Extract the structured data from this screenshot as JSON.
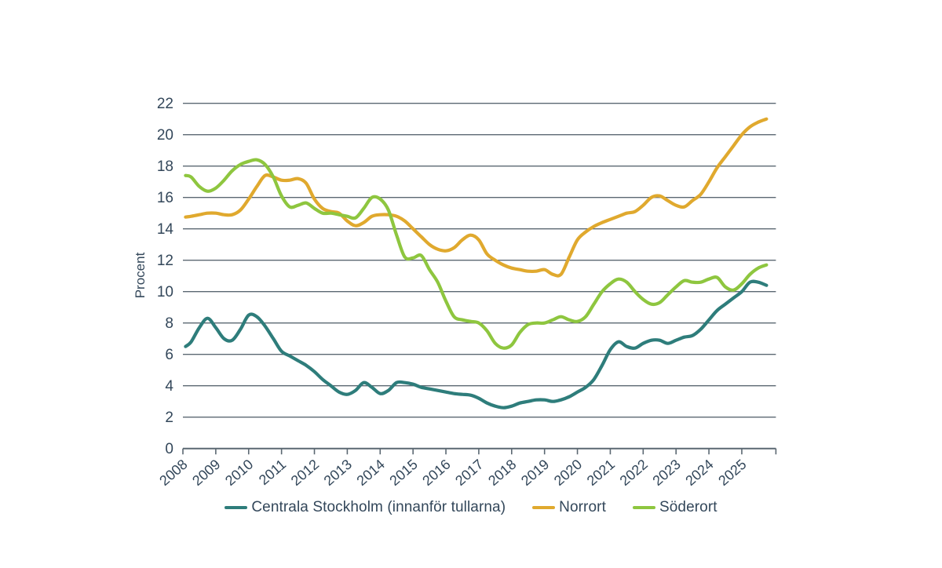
{
  "page": {
    "background_color": "#ffffff"
  },
  "chart_data": {
    "type": "line",
    "title": "",
    "xlabel": "",
    "ylabel": "Procent",
    "ylim": [
      0,
      22
    ],
    "ytick_step": 2,
    "yticks": [
      0,
      2,
      4,
      6,
      8,
      10,
      12,
      14,
      16,
      18,
      20,
      22
    ],
    "xticks": [
      2008,
      2009,
      2010,
      2011,
      2012,
      2013,
      2014,
      2015,
      2016,
      2017,
      2018,
      2019,
      2020,
      2021,
      2022,
      2023,
      2024,
      2025
    ],
    "grid": "horizontal",
    "legend_position": "bottom-center",
    "axis_color": "#5b6872",
    "text_color": "#33475a",
    "x_unit": "year (quarterly samples)",
    "x": [
      2008.08,
      2008.25,
      2008.5,
      2008.75,
      2009,
      2009.25,
      2009.5,
      2009.75,
      2010,
      2010.25,
      2010.5,
      2010.75,
      2011,
      2011.25,
      2011.5,
      2011.75,
      2012,
      2012.25,
      2012.5,
      2012.75,
      2013,
      2013.25,
      2013.5,
      2013.75,
      2014,
      2014.25,
      2014.5,
      2014.75,
      2015,
      2015.25,
      2015.5,
      2015.75,
      2016,
      2016.25,
      2016.5,
      2016.75,
      2017,
      2017.25,
      2017.5,
      2017.75,
      2018,
      2018.25,
      2018.5,
      2018.75,
      2019,
      2019.25,
      2019.5,
      2019.75,
      2020,
      2020.25,
      2020.5,
      2020.75,
      2021,
      2021.25,
      2021.5,
      2021.75,
      2022,
      2022.25,
      2022.5,
      2022.75,
      2023,
      2023.25,
      2023.5,
      2023.75,
      2024,
      2024.25,
      2024.5,
      2024.75,
      2025,
      2025.25,
      2025.5,
      2025.75
    ],
    "series": [
      {
        "name": "Centrala Stockholm (innanför tullarna)",
        "color": "#2e7d7b",
        "values": [
          6.5,
          6.8,
          7.7,
          8.3,
          7.7,
          7.0,
          6.9,
          7.6,
          8.5,
          8.4,
          7.8,
          7.0,
          6.2,
          5.9,
          5.6,
          5.3,
          4.9,
          4.4,
          4.0,
          3.6,
          3.45,
          3.7,
          4.2,
          3.9,
          3.5,
          3.7,
          4.2,
          4.2,
          4.1,
          3.9,
          3.8,
          3.7,
          3.6,
          3.5,
          3.45,
          3.4,
          3.2,
          2.9,
          2.7,
          2.6,
          2.7,
          2.9,
          3.0,
          3.1,
          3.1,
          3.0,
          3.1,
          3.3,
          3.6,
          3.9,
          4.4,
          5.3,
          6.3,
          6.8,
          6.5,
          6.4,
          6.7,
          6.9,
          6.9,
          6.7,
          6.9,
          7.1,
          7.2,
          7.6,
          8.2,
          8.8,
          9.2,
          9.6,
          10.0,
          10.6,
          10.6,
          10.4
        ]
      },
      {
        "name": "Norrort",
        "color": "#e0a92e",
        "values": [
          14.75,
          14.8,
          14.9,
          15.0,
          15.0,
          14.9,
          14.9,
          15.2,
          15.9,
          16.7,
          17.4,
          17.3,
          17.1,
          17.1,
          17.2,
          16.9,
          15.9,
          15.3,
          15.1,
          15.0,
          14.5,
          14.2,
          14.4,
          14.8,
          14.9,
          14.9,
          14.8,
          14.5,
          14.0,
          13.5,
          13.0,
          12.7,
          12.6,
          12.8,
          13.3,
          13.6,
          13.3,
          12.4,
          12.0,
          11.7,
          11.5,
          11.4,
          11.3,
          11.3,
          11.4,
          11.1,
          11.1,
          12.2,
          13.3,
          13.8,
          14.15,
          14.4,
          14.6,
          14.8,
          15.0,
          15.1,
          15.5,
          16.0,
          16.1,
          15.8,
          15.5,
          15.4,
          15.8,
          16.2,
          17.0,
          17.9,
          18.6,
          19.3,
          20.0,
          20.5,
          20.8,
          21.0
        ]
      },
      {
        "name": "Söderort",
        "color": "#8ec63f",
        "values": [
          17.4,
          17.3,
          16.7,
          16.4,
          16.6,
          17.1,
          17.7,
          18.1,
          18.3,
          18.4,
          18.1,
          17.3,
          16.1,
          15.4,
          15.5,
          15.65,
          15.3,
          15.0,
          15.0,
          14.9,
          14.8,
          14.7,
          15.3,
          16.0,
          15.9,
          15.2,
          13.6,
          12.2,
          12.15,
          12.3,
          11.4,
          10.6,
          9.4,
          8.4,
          8.2,
          8.1,
          8.0,
          7.5,
          6.7,
          6.4,
          6.6,
          7.4,
          7.9,
          8.0,
          8.0,
          8.2,
          8.4,
          8.2,
          8.1,
          8.4,
          9.2,
          10.0,
          10.5,
          10.8,
          10.6,
          10.0,
          9.5,
          9.2,
          9.3,
          9.8,
          10.3,
          10.7,
          10.6,
          10.6,
          10.8,
          10.9,
          10.3,
          10.1,
          10.5,
          11.1,
          11.5,
          11.7
        ]
      }
    ]
  },
  "legend": {
    "items": [
      {
        "label": "Centrala Stockholm (innanför tullarna)"
      },
      {
        "label": "Norrort"
      },
      {
        "label": "Söderort"
      }
    ]
  }
}
